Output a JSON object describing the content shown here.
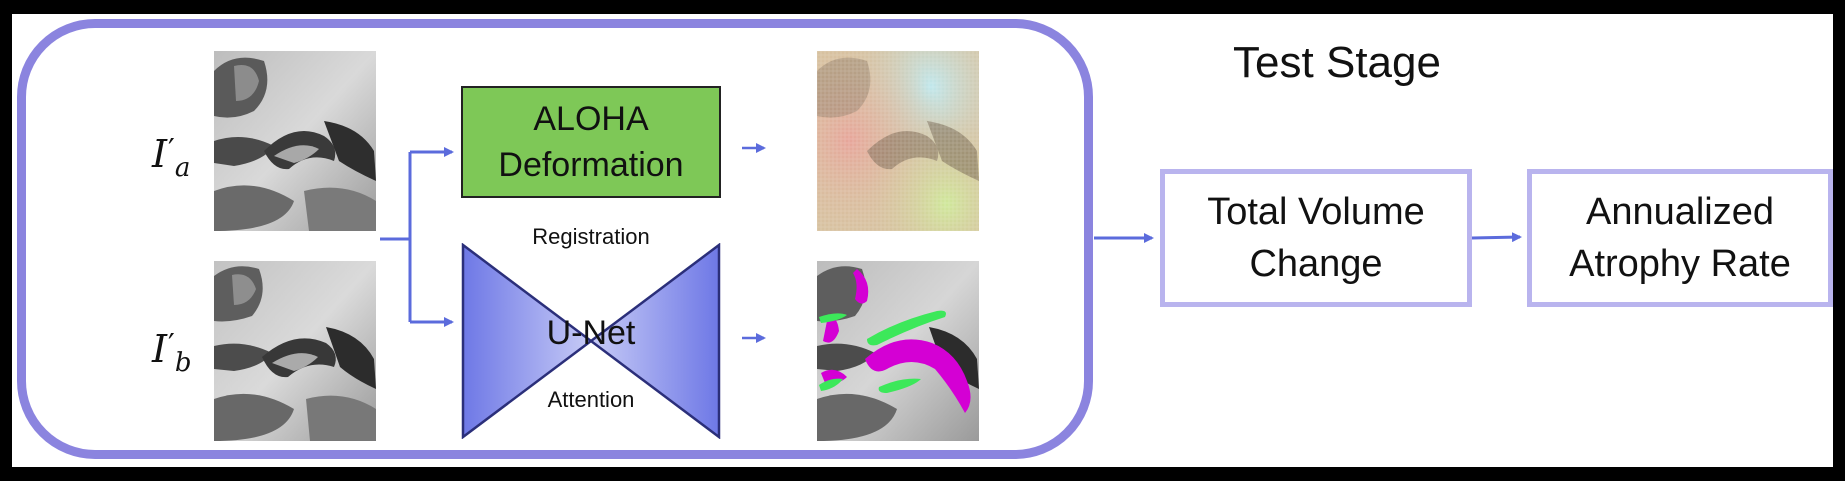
{
  "title": "Test Stage",
  "inputs": [
    {
      "symbol": "I",
      "subscript": "a",
      "prime": "′"
    },
    {
      "symbol": "I",
      "subscript": "b",
      "prime": "′"
    }
  ],
  "aloha": {
    "line1": "ALOHA",
    "line2": "Deformation"
  },
  "registration_label": "Registration",
  "unet_label": "U-Net",
  "attention_label": "Attention",
  "total_volume": {
    "line1": "Total Volume",
    "line2": "Change"
  },
  "atrophy": {
    "line1": "Annualized",
    "line2": "Atrophy Rate"
  },
  "colors": {
    "frame": "#8b84df",
    "arrow": "#5b6bdc",
    "aloha_fill": "#7ec857",
    "unet_fill": "#7a82e8",
    "result_border": "#b9b4ee",
    "segmentation_magenta": "#d400d4",
    "segmentation_green": "#3ce85a"
  }
}
